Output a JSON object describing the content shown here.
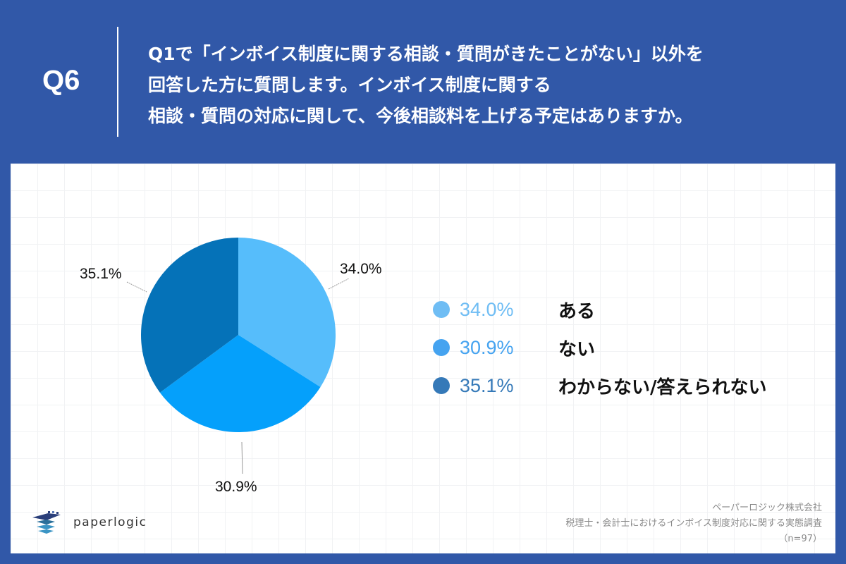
{
  "header": {
    "q_label": "Q6",
    "question_lines": [
      "Q1で「インボイス制度に関する相談・質問がきたことがない」以外を",
      "回答した方に質問します。インボイス制度に関する",
      "相談・質問の対応に関して、今後相談料を上げる予定はありますか。"
    ]
  },
  "colors": {
    "background": "#3158a8",
    "slice_aru": "#56bdfb",
    "slice_nai": "#05a0fb",
    "slice_wakaranai": "#0572b8",
    "legend_aru": "#6fbdf4",
    "legend_nai": "#45a3f0",
    "legend_wakaranai": "#3579b8"
  },
  "chart_data": {
    "type": "pie",
    "title": "今後相談料を上げる予定はありますか",
    "categories": [
      "ある",
      "ない",
      "わからない/答えられない"
    ],
    "values": [
      34.0,
      30.9,
      35.1
    ],
    "unit": "%",
    "start_angle": "12 o'clock, clockwise",
    "labels": [
      "34.0%",
      "30.9%",
      "35.1%"
    ],
    "legend_position": "right",
    "n": 97
  },
  "pie_labels": {
    "aru": "34.0%",
    "nai": "30.9%",
    "wakaranai": "35.1%"
  },
  "legend": [
    {
      "pct": "34.0%",
      "label": "ある"
    },
    {
      "pct": "30.9%",
      "label": "ない"
    },
    {
      "pct": "35.1%",
      "label": "わからない/答えられない"
    }
  ],
  "footer": {
    "logo_text": "paperlogic",
    "source_lines": [
      "ペーパーロジック株式会社",
      "税理士・会計士におけるインボイス制度対応に関する実態調査",
      "（n=97）"
    ]
  }
}
